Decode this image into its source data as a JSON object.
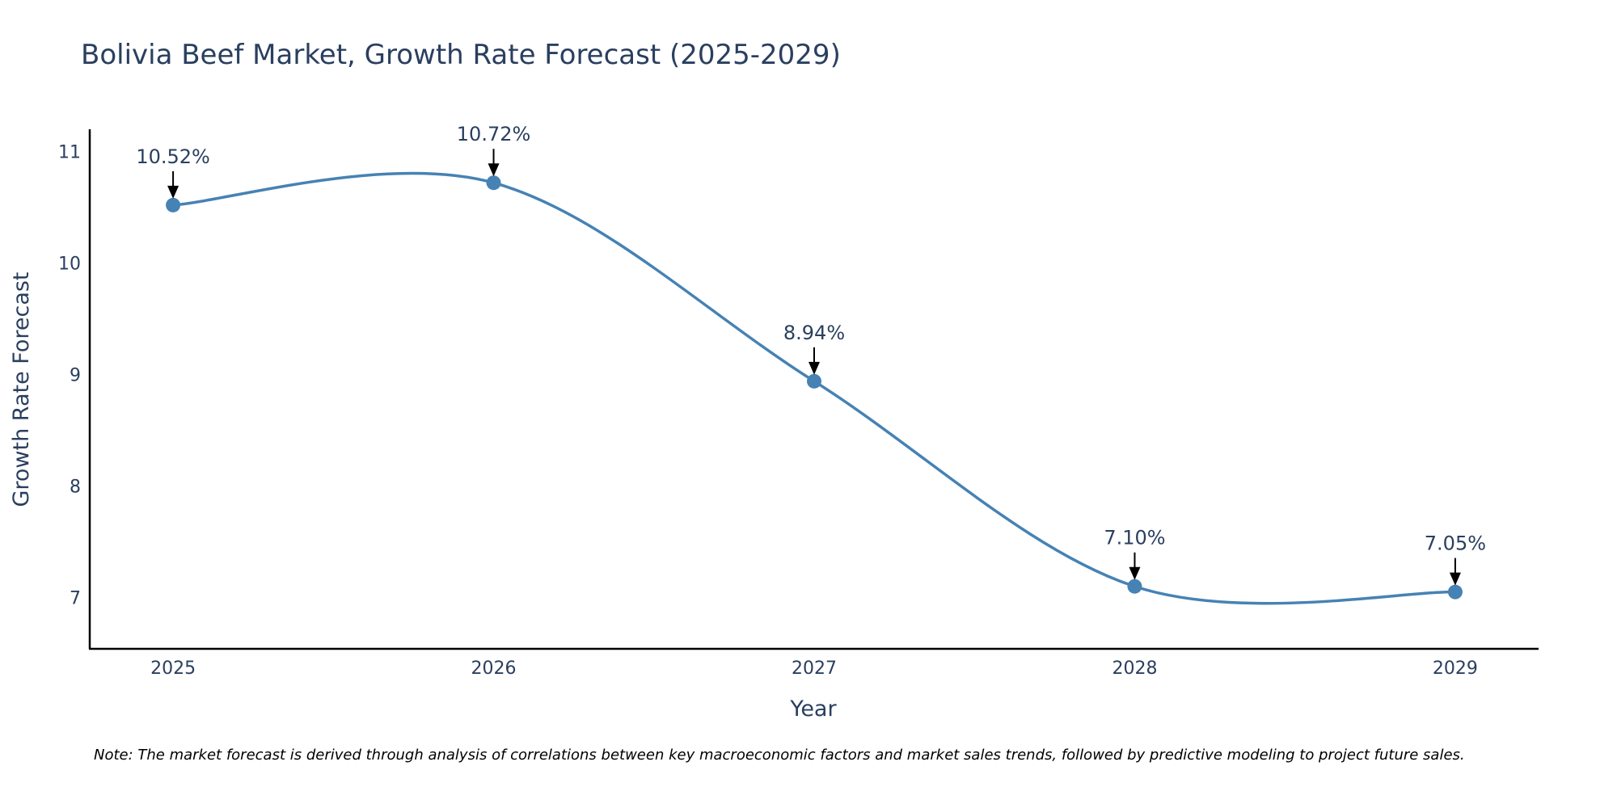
{
  "chart_data": {
    "type": "line",
    "title": "Bolivia Beef Market, Growth Rate Forecast (2025-2029)",
    "xlabel": "Year",
    "ylabel": "Growth Rate Forecast",
    "categories": [
      "2025",
      "2026",
      "2027",
      "2028",
      "2029"
    ],
    "series": [
      {
        "name": "Growth Rate Forecast",
        "values": [
          10.52,
          10.72,
          8.94,
          7.1,
          7.05
        ],
        "labels": [
          "10.52%",
          "10.72%",
          "8.94%",
          "7.10%",
          "7.05%"
        ],
        "color": "#4682b4"
      }
    ],
    "y_ticks": [
      7,
      8,
      9,
      10,
      11
    ],
    "ylim": [
      6.54,
      11.2
    ],
    "x_range": [
      -0.26,
      4.26
    ],
    "grid": false,
    "legend": "none",
    "line_shape": "spline",
    "annotation_color": "#000000"
  },
  "note": "Note: The market forecast is derived through analysis of correlations between key macroeconomic factors and market sales trends, followed by predictive modeling to project future sales."
}
